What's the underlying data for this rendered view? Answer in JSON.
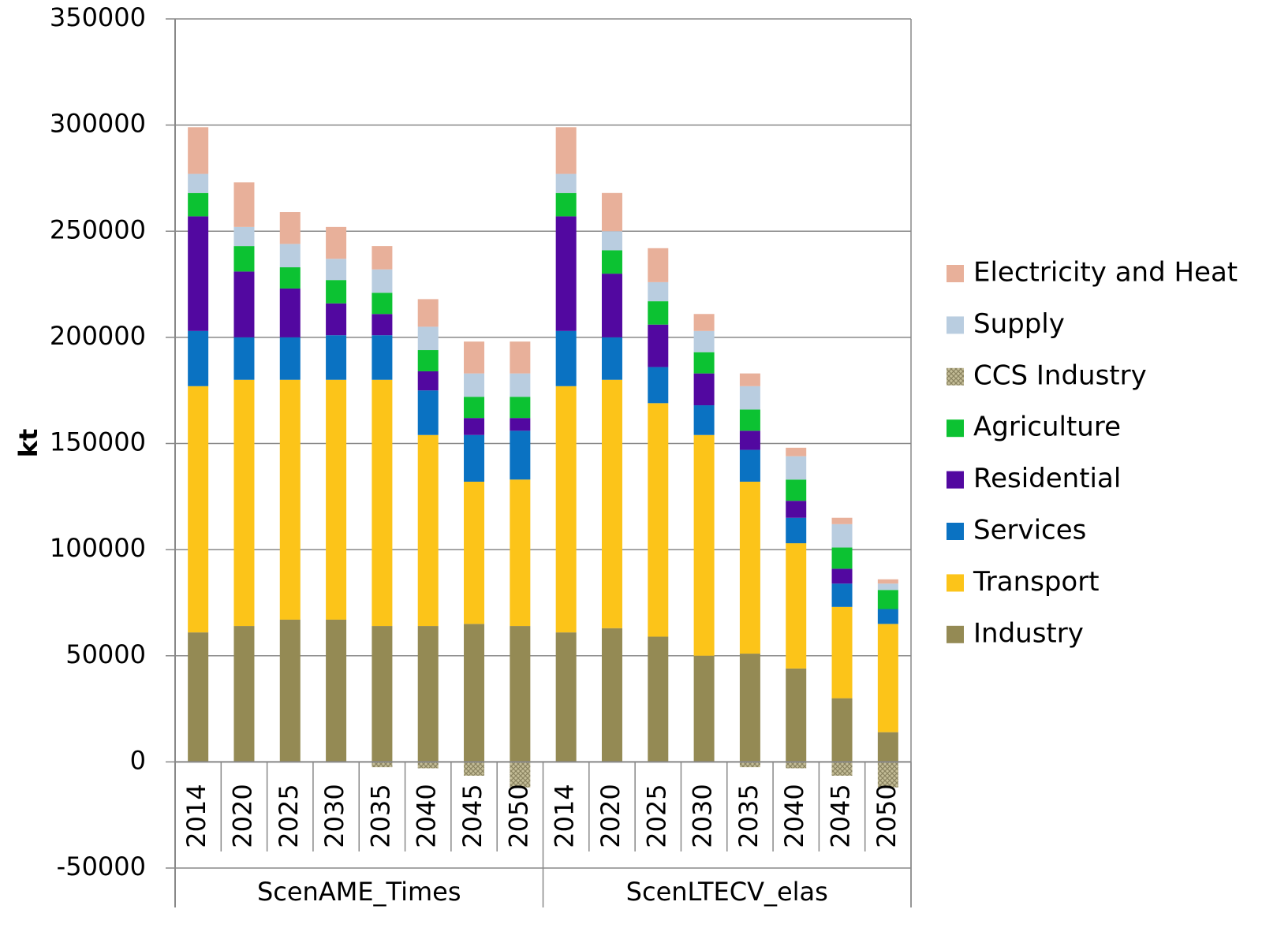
{
  "chart_data": {
    "type": "stacked_bar",
    "y_label": "kt",
    "categories": [
      "2014",
      "2020",
      "2025",
      "2030",
      "2035",
      "2040",
      "2045",
      "2050",
      "2014",
      "2020",
      "2025",
      "2030",
      "2035",
      "2040",
      "2045",
      "2050"
    ],
    "groups": [
      "ScenAME_Times",
      "ScenLTECV_elas"
    ],
    "ylim": [
      -50000,
      350000
    ],
    "yticks": [
      -50000,
      0,
      50000,
      100000,
      150000,
      200000,
      250000,
      300000,
      350000
    ],
    "grid": true,
    "legend": "right",
    "series": [
      {
        "name": "Industry",
        "color": "#948a54",
        "values": [
          61000,
          64000,
          67000,
          67000,
          64000,
          64000,
          65000,
          64000,
          61000,
          63000,
          59000,
          50000,
          51000,
          44000,
          30000,
          14000
        ]
      },
      {
        "name": "Transport",
        "color": "#fcc419",
        "values": [
          116000,
          116000,
          113000,
          113000,
          116000,
          90000,
          67000,
          69000,
          116000,
          117000,
          110000,
          104000,
          81000,
          59000,
          43000,
          51000
        ]
      },
      {
        "name": "Services",
        "color": "#0a72c2",
        "values": [
          26000,
          20000,
          20000,
          21000,
          21000,
          21000,
          22000,
          23000,
          26000,
          20000,
          17000,
          14000,
          15000,
          12000,
          11000,
          7000
        ]
      },
      {
        "name": "Residential",
        "color": "#5208a0",
        "values": [
          54000,
          31000,
          23000,
          15000,
          10000,
          9000,
          8000,
          6000,
          54000,
          30000,
          20000,
          15000,
          9000,
          8000,
          7000,
          0
        ]
      },
      {
        "name": "Agriculture",
        "color": "#0cc232",
        "values": [
          11000,
          12000,
          10000,
          11000,
          10000,
          10000,
          10000,
          10000,
          11000,
          11000,
          11000,
          10000,
          10000,
          10000,
          10000,
          9000
        ]
      },
      {
        "name": "CCS Industry",
        "color": "#c4bd97",
        "values": [
          0,
          0,
          0,
          0,
          -2500,
          -3000,
          -6500,
          -12000,
          0,
          0,
          0,
          0,
          -2500,
          -3000,
          -6500,
          -12000
        ]
      },
      {
        "name": "Supply",
        "color": "#b9cde0",
        "values": [
          9000,
          9000,
          11000,
          10000,
          11000,
          11000,
          11000,
          11000,
          9000,
          9000,
          9000,
          10000,
          11000,
          11000,
          11000,
          3000
        ]
      },
      {
        "name": "Electricity and Heat",
        "color": "#e8b09a",
        "values": [
          22000,
          21000,
          15000,
          15000,
          11000,
          13000,
          15000,
          15000,
          22000,
          18000,
          16000,
          8000,
          6000,
          4000,
          3000,
          2000
        ]
      }
    ]
  }
}
